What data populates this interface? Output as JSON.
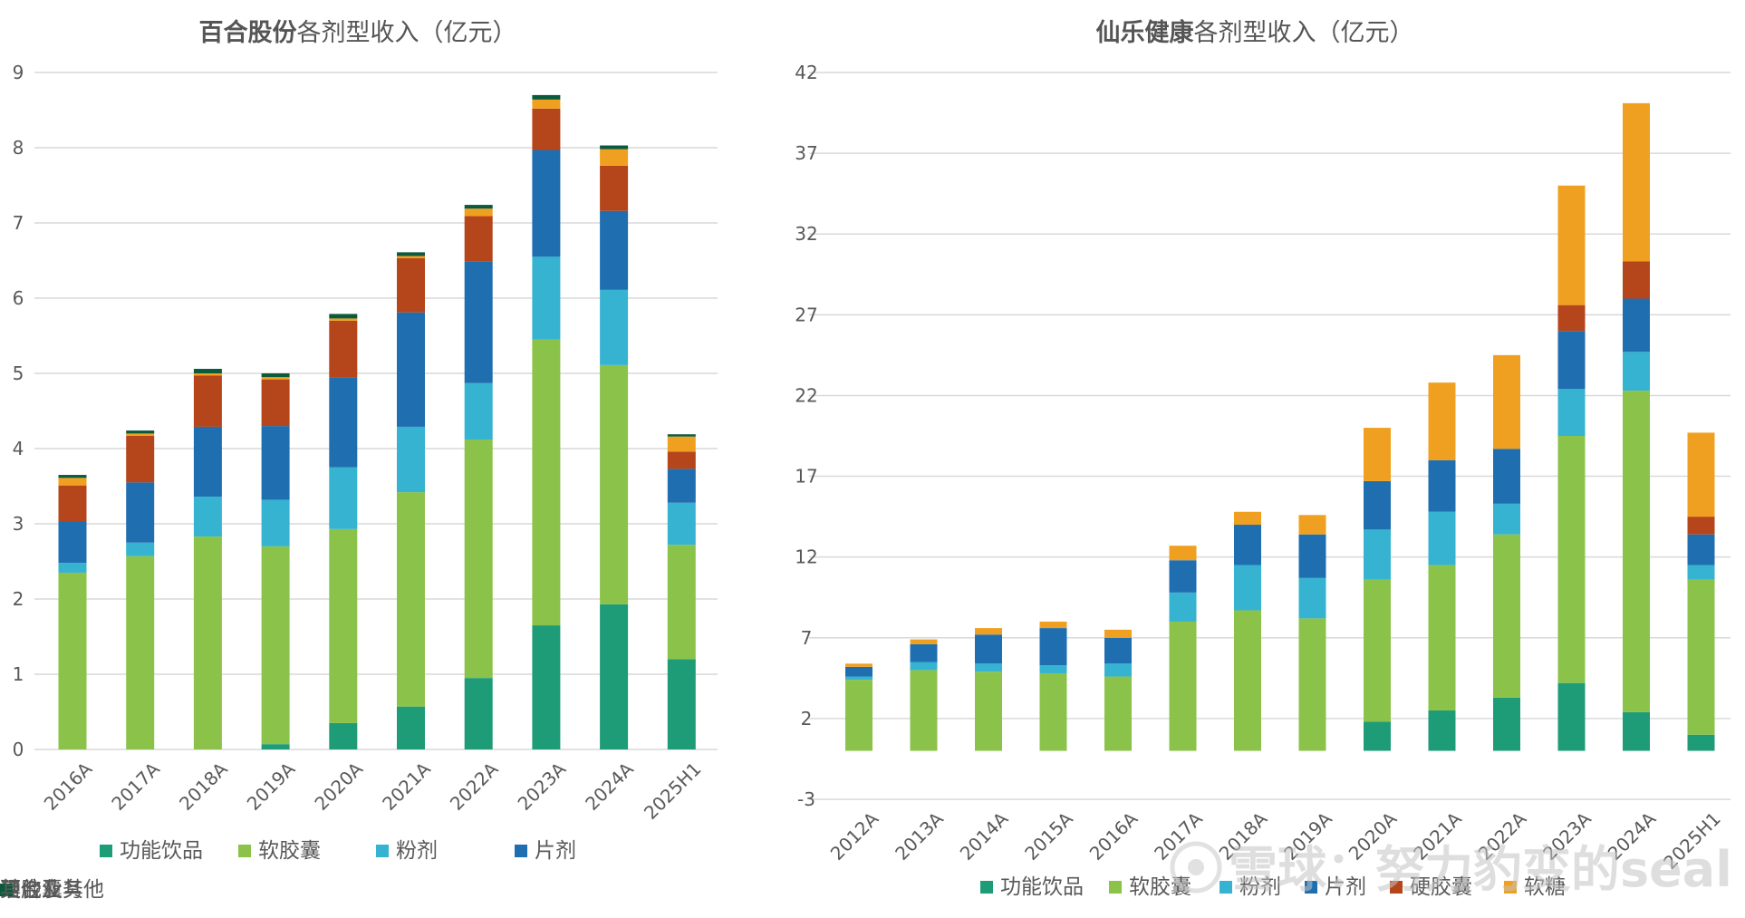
{
  "chart_data": [
    {
      "type": "bar",
      "stacked": true,
      "title_bold": "百合股份",
      "title_rest": "各剂型收入（亿元）",
      "categories": [
        "2016A",
        "2017A",
        "2018A",
        "2019A",
        "2020A",
        "2021A",
        "2022A",
        "2023A",
        "2024A",
        "2025H1"
      ],
      "ylim": [
        0,
        9
      ],
      "yticks": [
        0,
        1,
        2,
        3,
        4,
        5,
        6,
        7,
        8,
        9
      ],
      "legend_position": "bottom",
      "series": [
        {
          "name": "功能饮品",
          "color": "#1e9c78",
          "values": [
            0,
            0,
            0,
            0.07,
            0.35,
            0.57,
            0.95,
            1.65,
            1.93,
            1.2
          ]
        },
        {
          "name": "软胶囊",
          "color": "#8bc34a",
          "values": [
            2.35,
            2.57,
            2.83,
            2.63,
            2.58,
            2.85,
            3.17,
            3.8,
            3.18,
            1.52
          ]
        },
        {
          "name": "粉剂",
          "color": "#36b3d1",
          "values": [
            0.13,
            0.18,
            0.53,
            0.62,
            0.82,
            0.87,
            0.75,
            1.1,
            1.0,
            0.56
          ]
        },
        {
          "name": "片剂",
          "color": "#1f6fb0",
          "values": [
            0.55,
            0.8,
            0.93,
            0.98,
            1.2,
            1.52,
            1.62,
            1.42,
            1.05,
            0.45
          ]
        },
        {
          "name": "硬胶囊",
          "color": "#b5451b",
          "values": [
            0.48,
            0.62,
            0.68,
            0.62,
            0.75,
            0.72,
            0.6,
            0.55,
            0.6,
            0.23
          ]
        },
        {
          "name": "组合及其他",
          "color": "#f0a020",
          "values": [
            0.1,
            0.03,
            0.03,
            0.03,
            0.03,
            0.03,
            0.1,
            0.12,
            0.22,
            0.2
          ]
        },
        {
          "name": "其他业务",
          "color": "#0c5a3c",
          "values": [
            0.04,
            0.04,
            0.06,
            0.05,
            0.06,
            0.05,
            0.05,
            0.06,
            0.05,
            0.03
          ]
        }
      ]
    },
    {
      "type": "bar",
      "stacked": true,
      "title_bold": "仙乐健康",
      "title_rest": "各剂型收入（亿元）",
      "categories": [
        "2012A",
        "2013A",
        "2014A",
        "2015A",
        "2016A",
        "2017A",
        "2018A",
        "2019A",
        "2020A",
        "2021A",
        "2022A",
        "2023A",
        "2024A",
        "2025H1"
      ],
      "ylim": [
        -3,
        42
      ],
      "yticks": [
        -3,
        2,
        7,
        12,
        17,
        22,
        27,
        32,
        37,
        42
      ],
      "legend_position": "bottom",
      "series": [
        {
          "name": "功能饮品",
          "color": "#1e9c78",
          "values": [
            0,
            0,
            0,
            0,
            0,
            0,
            0,
            0,
            1.8,
            2.5,
            3.3,
            4.2,
            2.4,
            1.0
          ]
        },
        {
          "name": "软胶囊",
          "color": "#8bc34a",
          "values": [
            4.4,
            5.0,
            4.9,
            4.8,
            4.6,
            8.0,
            8.7,
            8.2,
            8.8,
            9.0,
            10.1,
            15.3,
            19.9,
            9.6
          ]
        },
        {
          "name": "粉剂",
          "color": "#36b3d1",
          "values": [
            0.2,
            0.5,
            0.5,
            0.5,
            0.8,
            1.8,
            2.8,
            2.5,
            3.1,
            3.3,
            1.9,
            2.9,
            2.4,
            0.9
          ]
        },
        {
          "name": "片剂",
          "color": "#1f6fb0",
          "values": [
            0.6,
            1.1,
            1.8,
            2.3,
            1.6,
            2.0,
            2.5,
            2.7,
            3.0,
            3.2,
            3.4,
            3.6,
            3.3,
            1.9
          ]
        },
        {
          "name": "硬胶囊",
          "color": "#b5451b",
          "values": [
            0,
            0,
            0,
            0,
            0,
            0,
            0,
            0,
            0,
            0,
            0,
            1.6,
            2.3,
            1.1
          ]
        },
        {
          "name": "软糖",
          "color": "#f0a020",
          "values": [
            0.2,
            0.3,
            0.4,
            0.4,
            0.5,
            0.9,
            0.8,
            1.2,
            3.3,
            4.8,
            5.8,
            7.4,
            9.8,
            5.2
          ]
        }
      ]
    }
  ],
  "watermark": "雪球：努力豹变的seal"
}
